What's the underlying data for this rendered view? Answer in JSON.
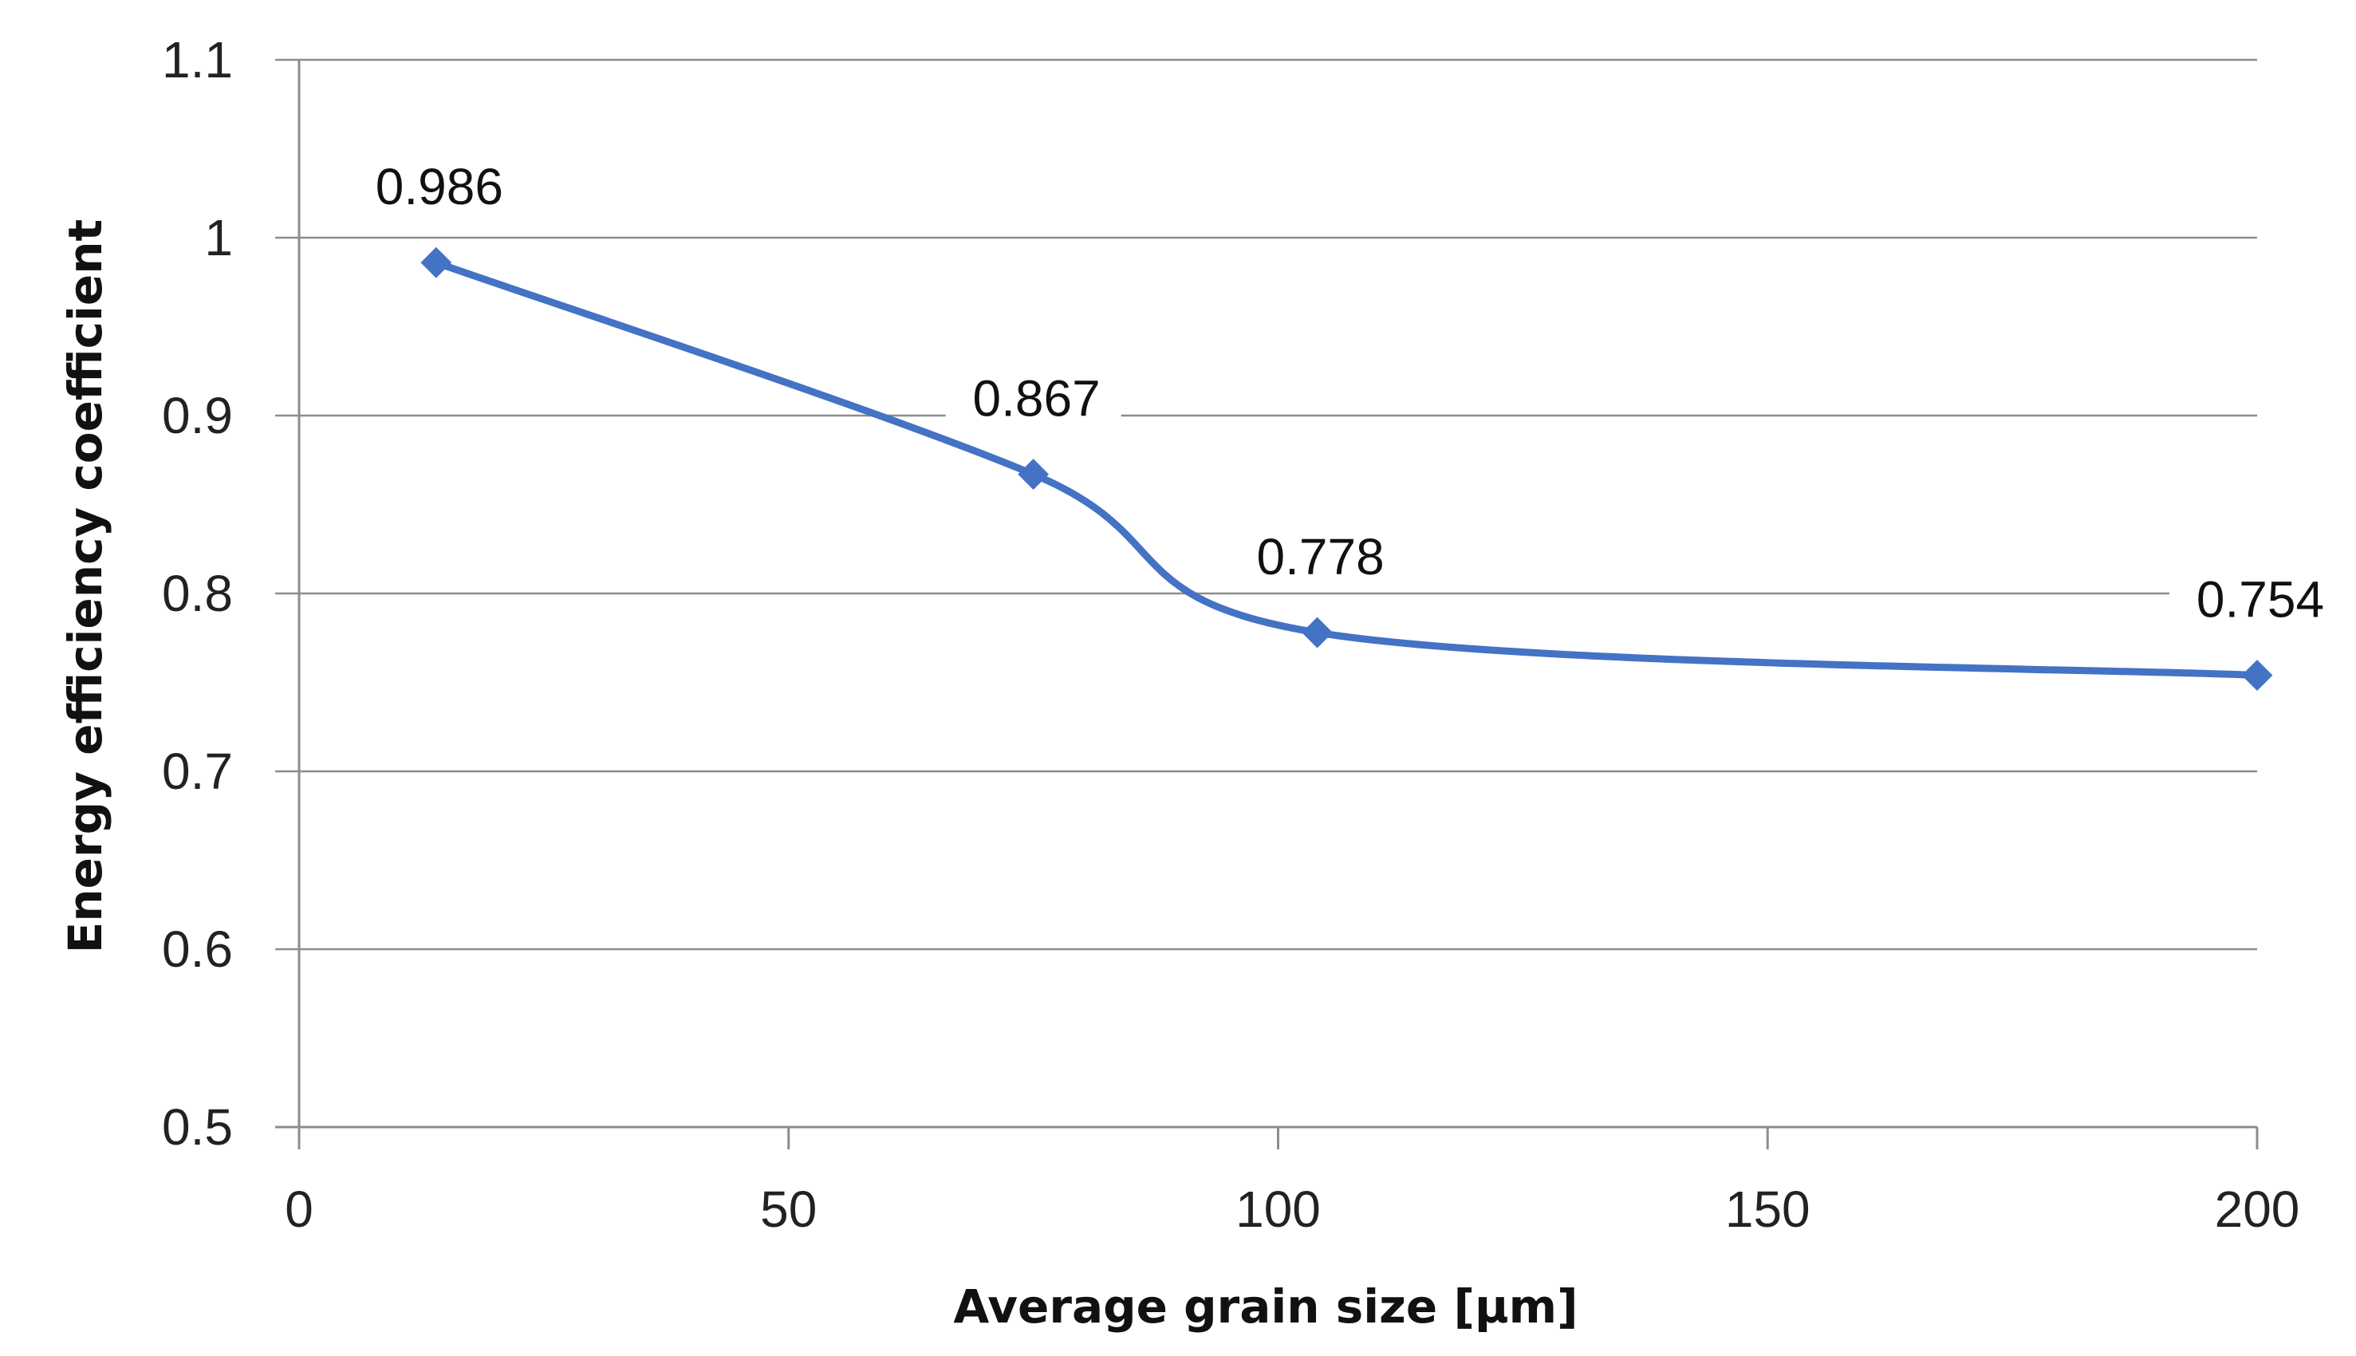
{
  "chart_data": {
    "type": "line",
    "title": "",
    "xlabel": "Average grain size [µm]",
    "ylabel": "Energy efficiency coefficient",
    "xlim": [
      0,
      200
    ],
    "ylim": [
      0.5,
      1.1
    ],
    "xticks": [
      0,
      50,
      100,
      150,
      200
    ],
    "xtick_labels": [
      "0",
      "50",
      "100",
      "150",
      "200"
    ],
    "yticks": [
      0.5,
      0.6,
      0.7,
      0.8,
      0.9,
      1.0,
      1.1
    ],
    "ytick_labels": [
      "0.5",
      "0.6",
      "0.7",
      "0.8",
      "0.9",
      "1",
      "1.1"
    ],
    "grid": true,
    "smooth": true,
    "marker": "diamond",
    "series": [
      {
        "name": "Energy efficiency coefficient",
        "color": "#4472C4",
        "x": [
          14,
          75,
          104,
          200
        ],
        "y": [
          0.986,
          0.867,
          0.778,
          0.754
        ],
        "labels": [
          "0.986",
          "0.867",
          "0.778",
          "0.754"
        ]
      }
    ]
  }
}
